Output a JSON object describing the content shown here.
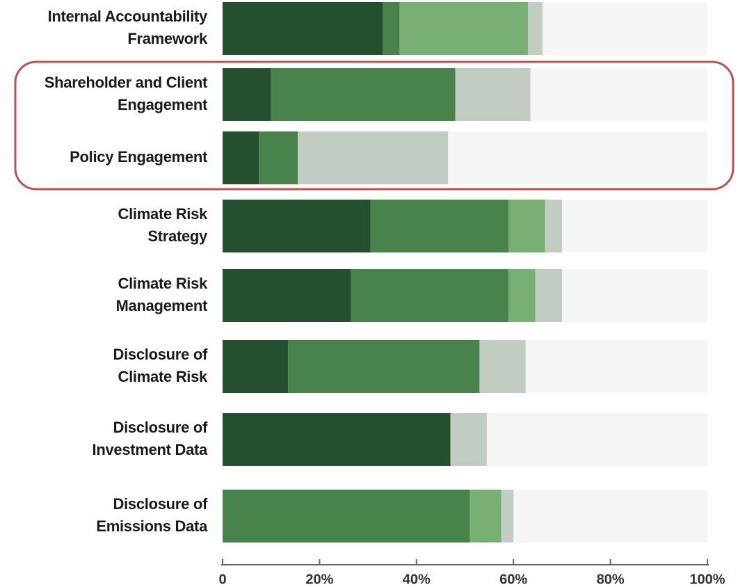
{
  "chart_data": {
    "type": "stacked-barh",
    "categories": [
      [
        "Internal Accountability",
        "Framework"
      ],
      [
        "Shareholder and Client",
        "Engagement"
      ],
      [
        "Policy Engagement"
      ],
      [
        "Climate Risk",
        "Strategy"
      ],
      [
        "Climate Risk",
        "Management"
      ],
      [
        "Disclosure of",
        "Climate Risk"
      ],
      [
        "Disclosure of",
        "Investment Data"
      ],
      [
        "Disclosure of",
        "Emissions Data"
      ]
    ],
    "series": [
      {
        "color": "#245030",
        "values": [
          33,
          10,
          7.5,
          30.5,
          26.5,
          13.5,
          47,
          0
        ]
      },
      {
        "color": "#47834b",
        "values": [
          3.5,
          38,
          8,
          28.5,
          32.5,
          39.5,
          0,
          51
        ]
      },
      {
        "color": "#78b074",
        "values": [
          26.5,
          0,
          0,
          7.5,
          5.5,
          0,
          0,
          6.5
        ]
      },
      {
        "color": "#c2ccc2",
        "values": [
          3,
          15.5,
          31,
          3.5,
          5.5,
          9.5,
          7.5,
          2.5
        ]
      }
    ],
    "xlim": [
      0,
      100
    ],
    "xticks": [
      0,
      {
        "value": 20,
        "label": "20%"
      },
      {
        "value": 40,
        "label": "40%"
      },
      {
        "value": 60,
        "label": "60%"
      },
      {
        "value": 80,
        "label": "80%"
      },
      {
        "value": 100,
        "label": "100%"
      }
    ]
  }
}
